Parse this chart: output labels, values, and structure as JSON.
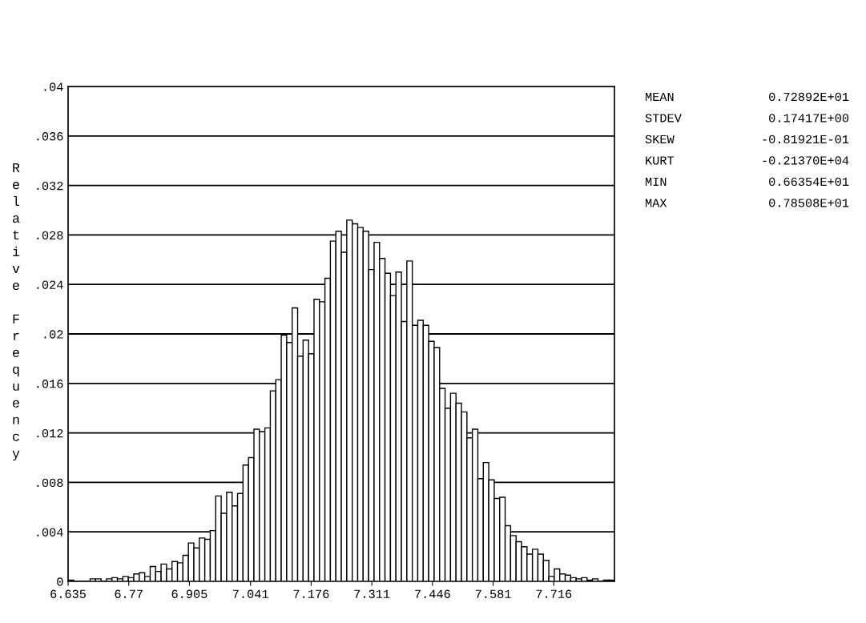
{
  "chart_data": {
    "type": "histogram",
    "ylabel": "Relative Frequency",
    "bins": [
      6.6354,
      6.64755,
      6.65971,
      6.67186,
      6.68402,
      6.69617,
      6.70832,
      6.72048,
      6.73263,
      6.74479,
      6.75694,
      6.76909,
      6.78125,
      6.7934,
      6.80556,
      6.81771,
      6.82986,
      6.84202,
      6.85417,
      6.86633,
      6.87848,
      6.89063,
      6.90279,
      6.91494,
      6.9271,
      6.93925,
      6.9514,
      6.96356,
      6.97571,
      6.98787,
      7.00002,
      7.01217,
      7.02433,
      7.03648,
      7.04864,
      7.06079,
      7.07294,
      7.0851,
      7.09725,
      7.10941,
      7.12156,
      7.13371,
      7.14587,
      7.15802,
      7.17018,
      7.18233,
      7.19448,
      7.20664,
      7.21879,
      7.23095,
      7.2431,
      7.25525,
      7.26741,
      7.27956,
      7.29172,
      7.30387,
      7.31602,
      7.32818,
      7.34033,
      7.35249,
      7.36464,
      7.37679,
      7.38895,
      7.4011,
      7.41326,
      7.42541,
      7.43756,
      7.44972,
      7.46187,
      7.47403,
      7.48618,
      7.49833,
      7.51049,
      7.52264,
      7.5348,
      7.54695,
      7.5591,
      7.57126,
      7.58341,
      7.59557,
      7.60772,
      7.61987,
      7.63203,
      7.64418,
      7.65634,
      7.66849,
      7.68064,
      7.6928,
      7.70495,
      7.71711,
      7.72926,
      7.74141,
      7.75357,
      7.76572,
      7.77788,
      7.79003,
      7.80218,
      7.81434,
      7.82649,
      7.83865,
      7.8508
    ],
    "values": [
      0.0001,
      0,
      0,
      0,
      0.0002,
      0.0002,
      0,
      0.0002,
      0.0003,
      0.0002,
      0.0004,
      0.0003,
      0.0006,
      0.0007,
      0.0004,
      0.0012,
      0.0008,
      0.0014,
      0.001,
      0.0016,
      0.0015,
      0.0021,
      0.0031,
      0.0027,
      0.0035,
      0.0034,
      0.0041,
      0.0069,
      0.0055,
      0.0072,
      0.0061,
      0.0071,
      0.0094,
      0.01,
      0.0123,
      0.0121,
      0.0124,
      0.0154,
      0.0163,
      0.0199,
      0.0193,
      0.0221,
      0.0182,
      0.0195,
      0.0184,
      0.0228,
      0.0226,
      0.0245,
      0.0275,
      0.0283,
      0.0266,
      0.0292,
      0.0289,
      0.0286,
      0.0283,
      0.0252,
      0.0274,
      0.0261,
      0.0249,
      0.0231,
      0.025,
      0.021,
      0.0259,
      0.0207,
      0.0211,
      0.0207,
      0.0194,
      0.0189,
      0.0156,
      0.014,
      0.0152,
      0.0144,
      0.0137,
      0.0116,
      0.0123,
      0.0083,
      0.0096,
      0.0082,
      0.0067,
      0.0068,
      0.0045,
      0.0037,
      0.0032,
      0.0028,
      0.0022,
      0.0026,
      0.0022,
      0.0017,
      0.0004,
      0.001,
      0.0006,
      0.0005,
      0.0003,
      0.0002,
      0.0003,
      0.0001,
      0.0002,
      0,
      0.0001,
      0.0001
    ],
    "color": "#ffffff",
    "xlim": [
      6.635,
      7.851
    ],
    "xticks": [
      6.635,
      6.77,
      6.905,
      7.041,
      7.176,
      7.311,
      7.446,
      7.581,
      7.716
    ],
    "ylim": [
      0,
      0.04
    ],
    "yticks": [
      {
        "value": 0,
        "label": "0"
      },
      {
        "value": 0.004,
        "label": ".004"
      },
      {
        "value": 0.008,
        "label": ".008"
      },
      {
        "value": 0.012,
        "label": ".012"
      },
      {
        "value": 0.016,
        "label": ".016"
      },
      {
        "value": 0.02,
        "label": ".02"
      },
      {
        "value": 0.024,
        "label": ".024"
      },
      {
        "value": 0.028,
        "label": ".028"
      },
      {
        "value": 0.032,
        "label": ".032"
      },
      {
        "value": 0.036,
        "label": ".036"
      },
      {
        "value": 0.04,
        "label": ".04"
      }
    ],
    "grid": "y",
    "annotations": [
      "MEAN 0.72892E+01",
      "STDEV 0.17417E+00",
      "SKEW -0.81921E-01",
      "KURT -0.21370E+04",
      "MIN 0.66354E+01",
      "MAX 0.78508E+01"
    ]
  }
}
